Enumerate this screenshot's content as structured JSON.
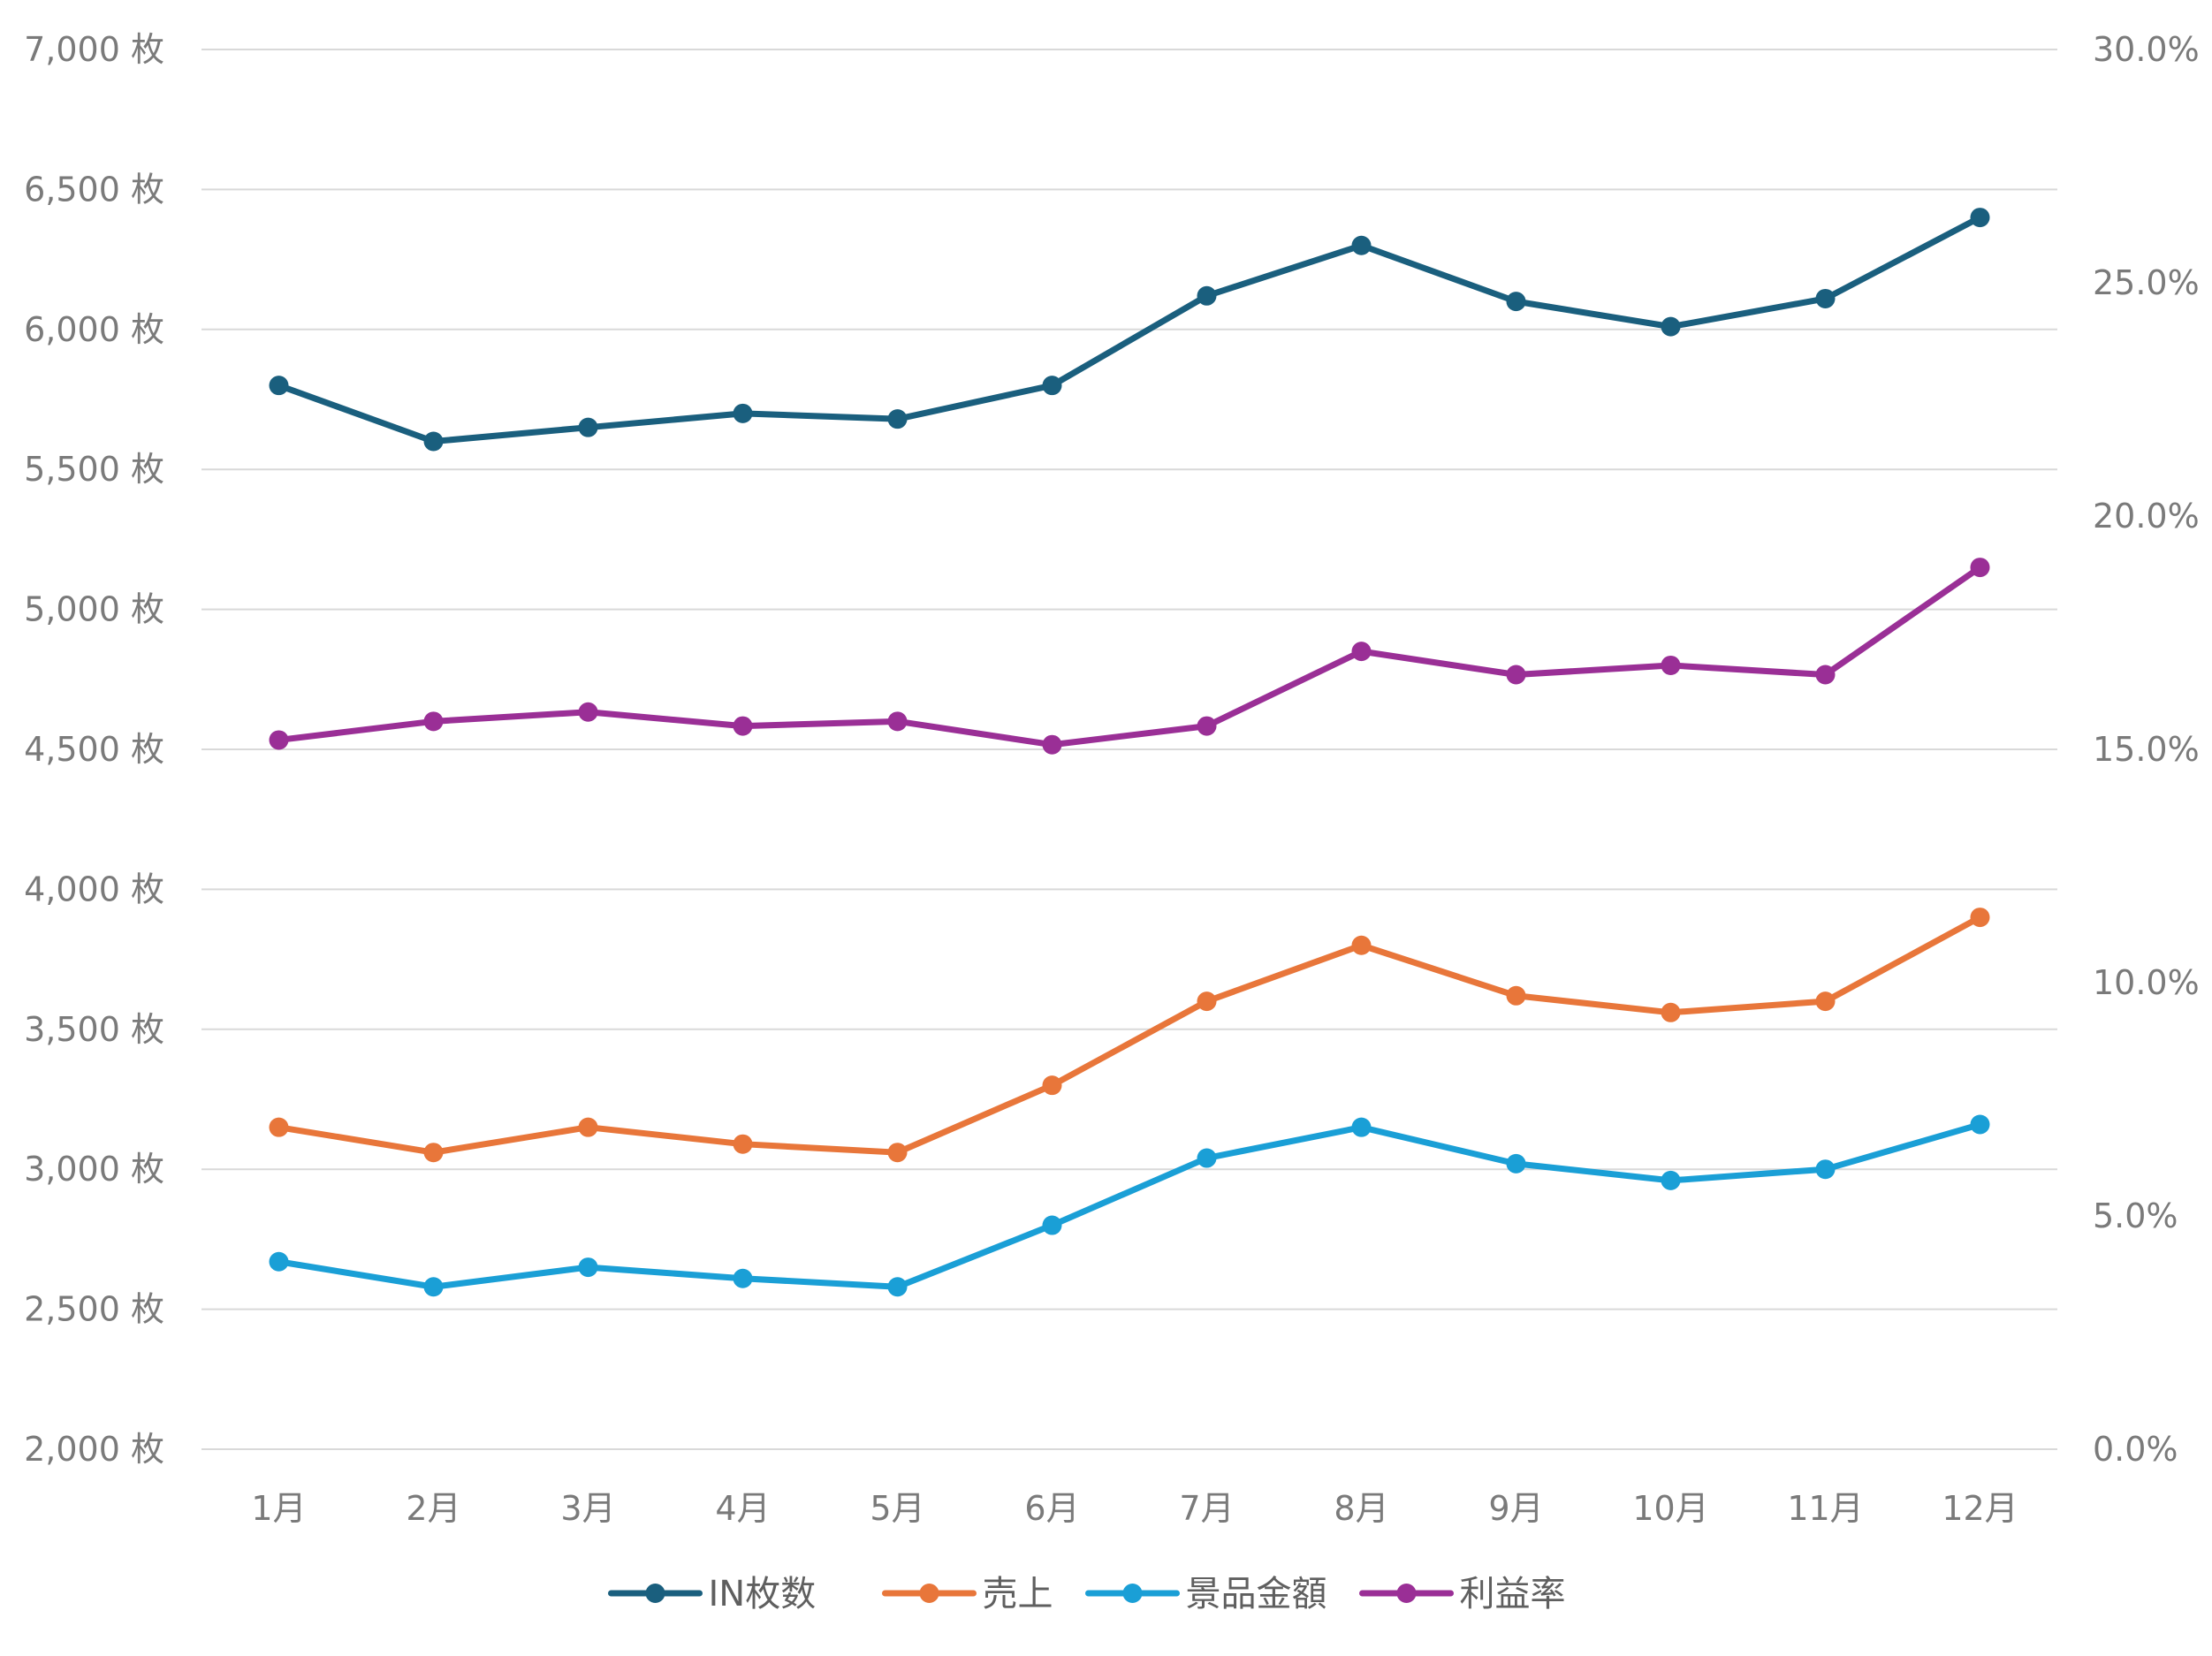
{
  "chart_data": {
    "type": "line",
    "title": "",
    "xlabel": "",
    "ylabel": "",
    "categories": [
      "1月",
      "2月",
      "3月",
      "4月",
      "5月",
      "6月",
      "7月",
      "8月",
      "9月",
      "10月",
      "11月",
      "12月"
    ],
    "left_axis": {
      "ylim": [
        2000,
        7000
      ],
      "ticks": [
        2000,
        2500,
        3000,
        3500,
        4000,
        4500,
        5000,
        5500,
        6000,
        6500,
        7000
      ],
      "tick_labels": [
        "2,000 枚",
        "2,500 枚",
        "3,000 枚",
        "3,500 枚",
        "4,000 枚",
        "4,500 枚",
        "5,000 枚",
        "5,500 枚",
        "6,000 枚",
        "6,500 枚",
        "7,000 枚"
      ]
    },
    "right_axis": {
      "ylim": [
        0,
        30
      ],
      "ticks": [
        0,
        5,
        10,
        15,
        20,
        25,
        30
      ],
      "tick_labels": [
        "0.0%",
        "5.0%",
        "10.0%",
        "15.0%",
        "20.0%",
        "25.0%",
        "30.0%"
      ]
    },
    "grid": true,
    "legend_position": "bottom",
    "series": [
      {
        "name": "IN枚数",
        "axis": "left",
        "color": "#1a5f7e",
        "values": [
          5800,
          5600,
          5650,
          5700,
          5680,
          5800,
          6120,
          6300,
          6100,
          6010,
          6110,
          6400
        ]
      },
      {
        "name": "売上",
        "axis": "left",
        "color": "#e8763a",
        "values": [
          3150,
          3060,
          3150,
          3090,
          3060,
          3300,
          3600,
          3800,
          3620,
          3560,
          3600,
          3900
        ]
      },
      {
        "name": "景品金額",
        "axis": "left",
        "color": "#1a9fd6",
        "values": [
          2670,
          2580,
          2650,
          2610,
          2580,
          2800,
          3040,
          3150,
          3020,
          2960,
          3000,
          3160
        ]
      },
      {
        "name": "利益率",
        "axis": "right",
        "color": "#9a2f96",
        "values": [
          15.2,
          15.6,
          15.8,
          15.5,
          15.6,
          15.1,
          15.5,
          17.1,
          16.6,
          16.8,
          16.6,
          18.9
        ]
      }
    ]
  }
}
